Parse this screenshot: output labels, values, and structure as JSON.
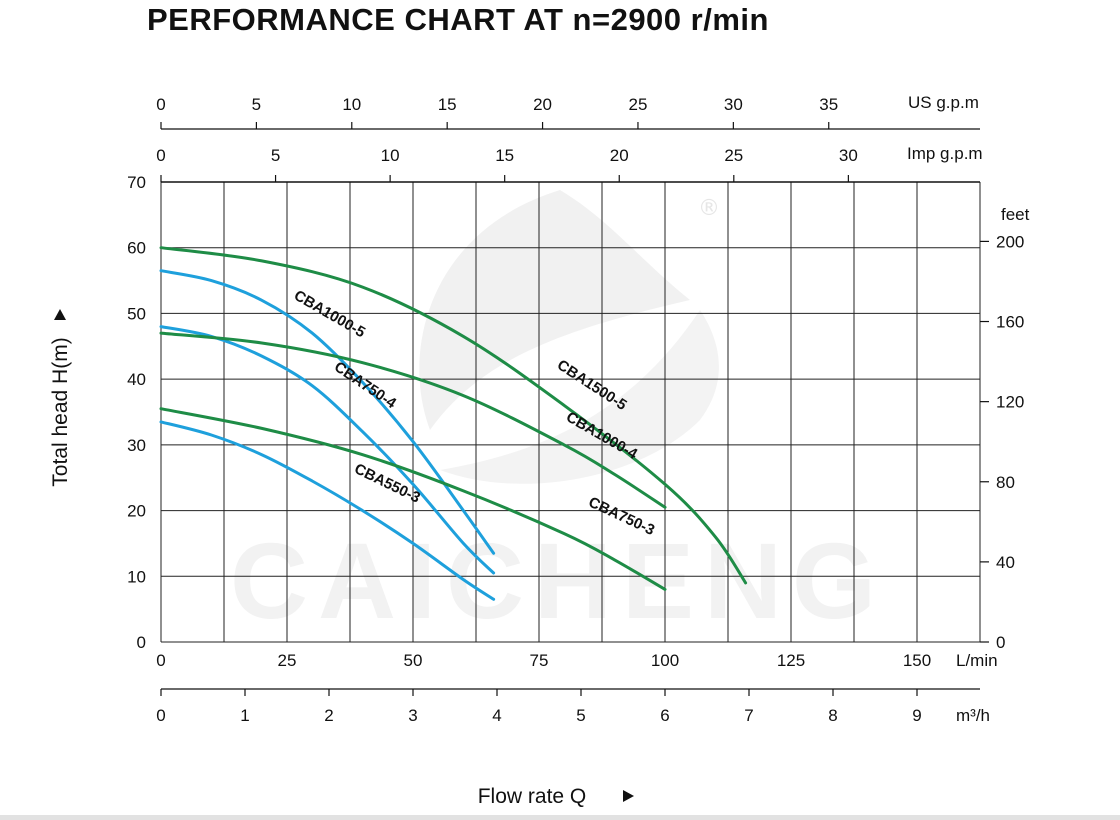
{
  "title": "PERFORMANCE CHART AT n=2900 r/min",
  "watermark": {
    "text": "CAICHENG",
    "registered": "®"
  },
  "colors": {
    "blue": "#1ea0dc",
    "green": "#1e8c46",
    "grid": "#222222"
  },
  "chart_data": {
    "type": "line",
    "title": "PERFORMANCE CHART AT n=2900 r/min",
    "xlabel": "Flow rate  Q",
    "ylabel": "Total  head H(m)",
    "grid": true,
    "x_axis": {
      "unit": "L/min",
      "range": [
        0,
        162.5
      ],
      "ticks": [
        0,
        25,
        50,
        75,
        100,
        125,
        150
      ]
    },
    "y_axis": {
      "unit": "m",
      "range": [
        0,
        70
      ],
      "ticks": [
        0,
        10,
        20,
        30,
        40,
        50,
        60,
        70
      ]
    },
    "secondary_axes": {
      "us_gpm": {
        "label": "US g.p.m",
        "ticks": [
          0,
          5,
          10,
          15,
          20,
          25,
          30,
          35
        ]
      },
      "imp_gpm": {
        "label": "Imp g.p.m",
        "ticks": [
          0,
          5,
          10,
          15,
          20,
          25,
          30
        ]
      },
      "m3h": {
        "label": "m³/h",
        "ticks": [
          0,
          1,
          2,
          3,
          4,
          5,
          6,
          7,
          8,
          9
        ]
      },
      "feet": {
        "label": "feet",
        "ticks": [
          0,
          40,
          80,
          120,
          160,
          200
        ]
      }
    },
    "series": [
      {
        "name": "CBA550-3",
        "color": "blue",
        "points": [
          [
            0,
            33.5
          ],
          [
            10,
            31.5
          ],
          [
            20,
            28.5
          ],
          [
            30,
            24.5
          ],
          [
            40,
            20
          ],
          [
            50,
            15
          ],
          [
            60,
            9.5
          ],
          [
            66,
            6.5
          ]
        ]
      },
      {
        "name": "CBA750-4",
        "color": "blue",
        "points": [
          [
            0,
            48
          ],
          [
            10,
            46.5
          ],
          [
            20,
            43.5
          ],
          [
            30,
            39
          ],
          [
            40,
            32
          ],
          [
            50,
            24
          ],
          [
            60,
            15
          ],
          [
            66,
            10.5
          ]
        ]
      },
      {
        "name": "CBA1000-5",
        "color": "blue",
        "points": [
          [
            0,
            56.5
          ],
          [
            10,
            55
          ],
          [
            20,
            52
          ],
          [
            30,
            47
          ],
          [
            40,
            39.5
          ],
          [
            50,
            30.5
          ],
          [
            60,
            20
          ],
          [
            66,
            13.5
          ]
        ]
      },
      {
        "name": "CBA750-3",
        "color": "green",
        "points": [
          [
            0,
            35.5
          ],
          [
            20,
            32.5
          ],
          [
            40,
            28.5
          ],
          [
            60,
            23
          ],
          [
            80,
            16.5
          ],
          [
            90,
            12.5
          ],
          [
            100,
            8
          ]
        ]
      },
      {
        "name": "CBA1000-4",
        "color": "green",
        "points": [
          [
            0,
            47
          ],
          [
            20,
            45.5
          ],
          [
            40,
            42.5
          ],
          [
            60,
            37.5
          ],
          [
            80,
            30
          ],
          [
            90,
            25.5
          ],
          [
            100,
            20.5
          ]
        ]
      },
      {
        "name": "CBA1500-5",
        "color": "green",
        "points": [
          [
            0,
            60
          ],
          [
            20,
            58
          ],
          [
            40,
            54
          ],
          [
            60,
            46.5
          ],
          [
            80,
            36
          ],
          [
            100,
            24
          ],
          [
            110,
            16
          ],
          [
            116,
            9
          ]
        ]
      }
    ],
    "labels": [
      {
        "series": "CBA1000-5",
        "text": "CBA1000-5",
        "x": 33,
        "y": 49.3,
        "angle": 30
      },
      {
        "series": "CBA750-4",
        "text": "CBA750-4",
        "x": 40,
        "y": 38.5,
        "angle": 34
      },
      {
        "series": "CBA550-3",
        "text": "CBA550-3",
        "x": 44.5,
        "y": 23.5,
        "angle": 26
      },
      {
        "series": "CBA1500-5",
        "text": "CBA1500-5",
        "x": 85,
        "y": 38.5,
        "angle": 33
      },
      {
        "series": "CBA1000-4",
        "text": "CBA1000-4",
        "x": 87,
        "y": 30.8,
        "angle": 30
      },
      {
        "series": "CBA750-3",
        "text": "CBA750-3",
        "x": 91,
        "y": 18.5,
        "angle": 25
      }
    ]
  }
}
